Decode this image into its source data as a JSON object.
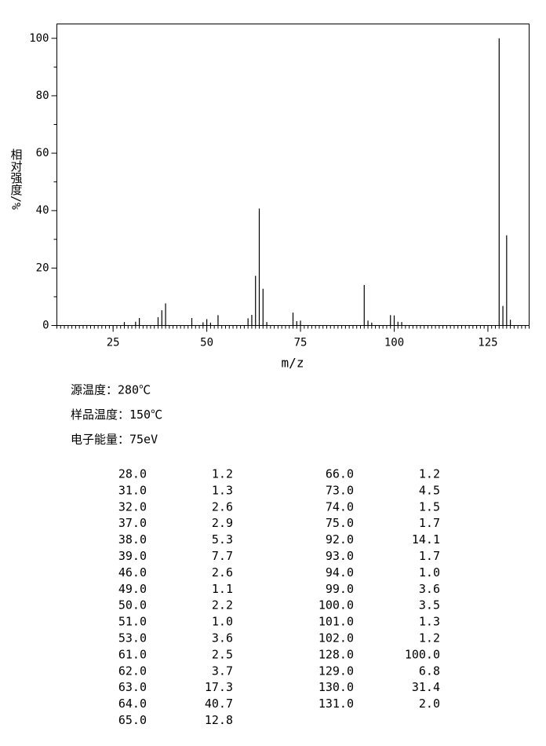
{
  "chart_data": {
    "type": "stick",
    "ylabel": "相对强度/%",
    "xlabel": "m/z",
    "xlim": [
      10,
      136
    ],
    "xticks": [
      25,
      50,
      75,
      100,
      125
    ],
    "ylim": [
      0,
      105
    ],
    "yticks": [
      0,
      20,
      40,
      60,
      80,
      100
    ],
    "color": "#000000",
    "x": [
      28,
      31,
      32,
      37,
      38,
      39,
      46,
      49,
      50,
      51,
      53,
      61,
      62,
      63,
      64,
      65,
      66,
      73,
      74,
      75,
      92,
      93,
      94,
      99,
      100,
      101,
      102,
      128,
      129,
      130,
      131
    ],
    "x_labels": [
      "28.0",
      "31.0",
      "32.0",
      "37.0",
      "38.0",
      "39.0",
      "46.0",
      "49.0",
      "50.0",
      "51.0",
      "53.0",
      "61.0",
      "62.0",
      "63.0",
      "64.0",
      "65.0",
      "66.0",
      "73.0",
      "74.0",
      "75.0",
      "92.0",
      "93.0",
      "94.0",
      "99.0",
      "100.0",
      "101.0",
      "102.0",
      "128.0",
      "129.0",
      "130.0",
      "131.0"
    ],
    "values": [
      1.2,
      1.3,
      2.6,
      2.9,
      5.3,
      7.7,
      2.6,
      1.1,
      2.2,
      1.0,
      3.6,
      2.5,
      3.7,
      17.3,
      40.7,
      12.8,
      1.2,
      4.5,
      1.5,
      1.7,
      14.1,
      1.7,
      1.0,
      3.6,
      3.5,
      1.3,
      1.2,
      100.0,
      6.8,
      31.4,
      2.0
    ],
    "value_labels": [
      "1.2",
      "1.3",
      "2.6",
      "2.9",
      "5.3",
      "7.7",
      "2.6",
      "1.1",
      "2.2",
      "1.0",
      "3.6",
      "2.5",
      "3.7",
      "17.3",
      "40.7",
      "12.8",
      "1.2",
      "4.5",
      "1.5",
      "1.7",
      "14.1",
      "1.7",
      "1.0",
      "3.6",
      "3.5",
      "1.3",
      "1.2",
      "100.0",
      "6.8",
      "31.4",
      "2.0"
    ]
  },
  "conditions": [
    "源温度：280℃",
    "样品温度：150℃",
    "电子能量：75eV"
  ]
}
